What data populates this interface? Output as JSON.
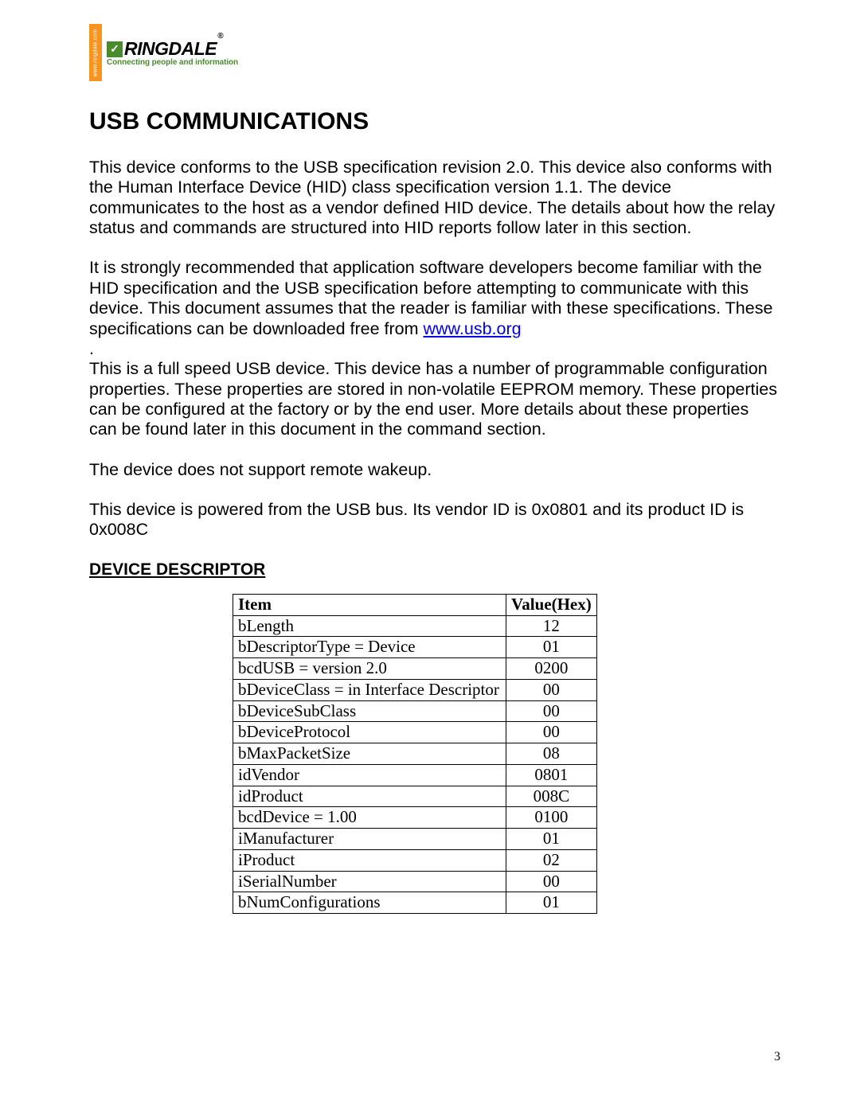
{
  "logo": {
    "sidebar_text": "www.ringdale.com",
    "brand": "RINGDALE",
    "registered": "®",
    "tagline": "Connecting people and information",
    "icon_glyph": "✓"
  },
  "title": "USB COMMUNICATIONS",
  "paragraphs": {
    "p1": "This device conforms to the USB specification revision 2.0. This device also conforms with the Human Interface Device (HID) class specification version 1.1. The device communicates to the host as a vendor defined HID device. The details about how the relay status and commands are structured into HID reports follow later in this section.",
    "p2_pre": "It is strongly recommended that application software developers become familiar with the HID specification and the USB specification before attempting to communicate with this device. This document assumes that the reader is familiar with these specifications. These specifications can be downloaded free from ",
    "p2_link": "www.usb.org",
    "p3_prefix": ".",
    "p3": "This is a full speed USB device. This device has a number of programmable configuration properties. These properties are stored in non-volatile EEPROM memory. These properties can be configured at the factory or by the end user. More details about these properties can be found later in this document in the command section.",
    "p4": "The device does not support remote wakeup.",
    "p5": "This device is powered from the USB bus. Its vendor ID is 0x0801 and its product ID is 0x008C"
  },
  "subheading": "DEVICE DESCRIPTOR",
  "table": {
    "headers": {
      "item": "Item",
      "value": "Value(Hex)"
    },
    "rows": [
      {
        "item": "bLength",
        "value": "12"
      },
      {
        "item": "bDescriptorType =  Device",
        "value": "01"
      },
      {
        "item": "bcdUSB = version 2.0",
        "value": "0200"
      },
      {
        "item": "bDeviceClass = in Interface Descriptor",
        "value": "00"
      },
      {
        "item": "bDeviceSubClass",
        "value": "00"
      },
      {
        "item": "bDeviceProtocol",
        "value": "00"
      },
      {
        "item": "bMaxPacketSize",
        "value": "08"
      },
      {
        "item": "idVendor",
        "value": "0801"
      },
      {
        "item": "idProduct",
        "value": "008C"
      },
      {
        "item": "bcdDevice = 1.00",
        "value": "0100"
      },
      {
        "item": "iManufacturer",
        "value": "01"
      },
      {
        "item": "iProduct",
        "value": "02"
      },
      {
        "item": "iSerialNumber",
        "value": "00"
      },
      {
        "item": "bNumConfigurations",
        "value": "01"
      }
    ]
  },
  "page_number": "3"
}
